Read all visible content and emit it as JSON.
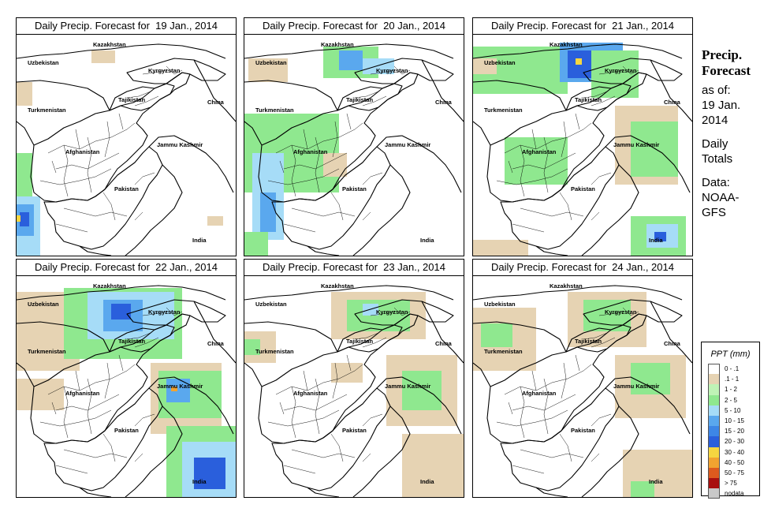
{
  "panels": [
    {
      "title": "Daily Precip. Forecast for  19 Jan., 2014",
      "precip": [
        {
          "x": 0,
          "y": 150,
          "w": 20,
          "h": 130,
          "c": "#8fe88f"
        },
        {
          "x": 0,
          "y": 205,
          "w": 30,
          "h": 75,
          "c": "#a6dcf7"
        },
        {
          "x": 0,
          "y": 215,
          "w": 22,
          "h": 40,
          "c": "#5aa8ee"
        },
        {
          "x": 4,
          "y": 225,
          "w": 12,
          "h": 18,
          "c": "#2a5fdc"
        },
        {
          "x": 0,
          "y": 229,
          "w": 5,
          "h": 8,
          "c": "#f6d640"
        },
        {
          "x": 95,
          "y": 20,
          "w": 30,
          "h": 16,
          "c": "#e6d3b3"
        },
        {
          "x": 0,
          "y": 60,
          "w": 20,
          "h": 30,
          "c": "#e6d3b3"
        },
        {
          "x": 242,
          "y": 230,
          "w": 20,
          "h": 12,
          "c": "#e6d3b3"
        }
      ]
    },
    {
      "title": "Daily Precip. Forecast for  20 Jan., 2014",
      "precip": [
        {
          "x": 5,
          "y": 30,
          "w": 50,
          "h": 30,
          "c": "#e6d3b3"
        },
        {
          "x": 0,
          "y": 100,
          "w": 120,
          "h": 100,
          "c": "#8fe88f"
        },
        {
          "x": 10,
          "y": 150,
          "w": 40,
          "h": 110,
          "c": "#a6dcf7"
        },
        {
          "x": 20,
          "y": 200,
          "w": 20,
          "h": 50,
          "c": "#5aa8ee"
        },
        {
          "x": 100,
          "y": 15,
          "w": 70,
          "h": 40,
          "c": "#8fe88f"
        },
        {
          "x": 120,
          "y": 20,
          "w": 30,
          "h": 25,
          "c": "#5aa8ee"
        },
        {
          "x": 150,
          "y": 30,
          "w": 40,
          "h": 20,
          "c": "#a6dcf7"
        },
        {
          "x": 100,
          "y": 150,
          "w": 30,
          "h": 30,
          "c": "#e6d3b3"
        },
        {
          "x": 0,
          "y": 250,
          "w": 30,
          "h": 30,
          "c": "#8fe88f"
        }
      ]
    },
    {
      "title": "Daily Precip. Forecast for  21 Jan., 2014",
      "precip": [
        {
          "x": 0,
          "y": 15,
          "w": 120,
          "h": 60,
          "c": "#8fe88f"
        },
        {
          "x": 0,
          "y": 30,
          "w": 30,
          "h": 20,
          "c": "#e6d3b3"
        },
        {
          "x": 110,
          "y": 10,
          "w": 80,
          "h": 50,
          "c": "#5aa8ee"
        },
        {
          "x": 120,
          "y": 20,
          "w": 30,
          "h": 35,
          "c": "#2a5fdc"
        },
        {
          "x": 130,
          "y": 30,
          "w": 8,
          "h": 8,
          "c": "#f6d640"
        },
        {
          "x": 150,
          "y": 20,
          "w": 60,
          "h": 60,
          "c": "#8fe88f"
        },
        {
          "x": 180,
          "y": 90,
          "w": 80,
          "h": 100,
          "c": "#e6d3b3"
        },
        {
          "x": 200,
          "y": 110,
          "w": 60,
          "h": 70,
          "c": "#8fe88f"
        },
        {
          "x": 40,
          "y": 130,
          "w": 80,
          "h": 60,
          "c": "#8fe88f"
        },
        {
          "x": 200,
          "y": 230,
          "w": 70,
          "h": 50,
          "c": "#8fe88f"
        },
        {
          "x": 220,
          "y": 240,
          "w": 40,
          "h": 30,
          "c": "#a6dcf7"
        },
        {
          "x": 230,
          "y": 250,
          "w": 15,
          "h": 12,
          "c": "#2a5fdc"
        },
        {
          "x": 0,
          "y": 260,
          "w": 70,
          "h": 20,
          "c": "#e6d3b3"
        }
      ]
    },
    {
      "title": "Daily Precip. Forecast for  22 Jan., 2014",
      "precip": [
        {
          "x": 0,
          "y": 20,
          "w": 80,
          "h": 100,
          "c": "#e6d3b3"
        },
        {
          "x": 60,
          "y": 15,
          "w": 150,
          "h": 90,
          "c": "#8fe88f"
        },
        {
          "x": 90,
          "y": 20,
          "w": 110,
          "h": 60,
          "c": "#a6dcf7"
        },
        {
          "x": 110,
          "y": 30,
          "w": 50,
          "h": 40,
          "c": "#5aa8ee"
        },
        {
          "x": 120,
          "y": 35,
          "w": 25,
          "h": 20,
          "c": "#2a5fdc"
        },
        {
          "x": 170,
          "y": 110,
          "w": 90,
          "h": 90,
          "c": "#e6d3b3"
        },
        {
          "x": 180,
          "y": 120,
          "w": 80,
          "h": 60,
          "c": "#8fe88f"
        },
        {
          "x": 190,
          "y": 130,
          "w": 30,
          "h": 30,
          "c": "#5aa8ee"
        },
        {
          "x": 196,
          "y": 140,
          "w": 8,
          "h": 6,
          "c": "#f2a330"
        },
        {
          "x": 190,
          "y": 190,
          "w": 88,
          "h": 90,
          "c": "#8fe88f"
        },
        {
          "x": 210,
          "y": 210,
          "w": 68,
          "h": 70,
          "c": "#a6dcf7"
        },
        {
          "x": 225,
          "y": 230,
          "w": 40,
          "h": 40,
          "c": "#2a5fdc"
        },
        {
          "x": 0,
          "y": 130,
          "w": 60,
          "h": 40,
          "c": "#e6d3b3"
        }
      ]
    },
    {
      "title": "Daily Precip. Forecast for  23 Jan., 2014",
      "precip": [
        {
          "x": 110,
          "y": 20,
          "w": 120,
          "h": 60,
          "c": "#e6d3b3"
        },
        {
          "x": 130,
          "y": 30,
          "w": 80,
          "h": 40,
          "c": "#8fe88f"
        },
        {
          "x": 150,
          "y": 35,
          "w": 20,
          "h": 15,
          "c": "#a6dcf7"
        },
        {
          "x": 180,
          "y": 100,
          "w": 90,
          "h": 90,
          "c": "#e6d3b3"
        },
        {
          "x": 200,
          "y": 120,
          "w": 50,
          "h": 50,
          "c": "#8fe88f"
        },
        {
          "x": 200,
          "y": 200,
          "w": 78,
          "h": 80,
          "c": "#e6d3b3"
        },
        {
          "x": 0,
          "y": 70,
          "w": 40,
          "h": 40,
          "c": "#e6d3b3"
        },
        {
          "x": 0,
          "y": 80,
          "w": 20,
          "h": 20,
          "c": "#8fe88f"
        },
        {
          "x": 110,
          "y": 110,
          "w": 40,
          "h": 25,
          "c": "#e6d3b3"
        }
      ]
    },
    {
      "title": "Daily Precip. Forecast for  24 Jan., 2014",
      "precip": [
        {
          "x": 0,
          "y": 40,
          "w": 80,
          "h": 80,
          "c": "#e6d3b3"
        },
        {
          "x": 10,
          "y": 60,
          "w": 40,
          "h": 30,
          "c": "#8fe88f"
        },
        {
          "x": 120,
          "y": 20,
          "w": 100,
          "h": 70,
          "c": "#e6d3b3"
        },
        {
          "x": 140,
          "y": 30,
          "w": 60,
          "h": 40,
          "c": "#8fe88f"
        },
        {
          "x": 180,
          "y": 100,
          "w": 90,
          "h": 80,
          "c": "#e6d3b3"
        },
        {
          "x": 200,
          "y": 110,
          "w": 50,
          "h": 40,
          "c": "#8fe88f"
        },
        {
          "x": 190,
          "y": 220,
          "w": 88,
          "h": 60,
          "c": "#e6d3b3"
        },
        {
          "x": 200,
          "y": 260,
          "w": 30,
          "h": 20,
          "c": "#8fe88f"
        }
      ]
    }
  ],
  "map_labels": {
    "kazakhstan": "Kazakhstan",
    "uzbekistan": "Uzbekistan",
    "kyrgyzstan": "Kyrgyzstan",
    "tajikistan": "Tajikistan",
    "turkmenistan": "Turkmenistan",
    "china": "China",
    "afghanistan": "Afghanistan",
    "jammu_kashmir": "Jammu Kashmir",
    "pakistan": "Pakistan",
    "india": "India"
  },
  "side_panel": {
    "heading_line1": "Precip.",
    "heading_line2": "Forecast",
    "asof_line1": "as of:",
    "asof_line2": "19 Jan.",
    "asof_line3": "2014",
    "daily_line1": "Daily",
    "daily_line2": "Totals",
    "data_line1": "Data:",
    "data_line2": "NOAA-",
    "data_line3": "GFS"
  },
  "legend": {
    "title": "PPT (mm)",
    "items": [
      {
        "label": "0 - .1",
        "color": "#ffffff"
      },
      {
        "label": ".1 - 1",
        "color": "#e6d3b3"
      },
      {
        "label": "1 - 2",
        "color": "#bff3b6"
      },
      {
        "label": "2 - 5",
        "color": "#8fe88f"
      },
      {
        "label": "5 - 10",
        "color": "#a6dcf7"
      },
      {
        "label": "10 - 15",
        "color": "#5aa8ee"
      },
      {
        "label": "15 - 20",
        "color": "#3d86e6"
      },
      {
        "label": "20 - 30",
        "color": "#2a5fdc"
      },
      {
        "label": "30 - 40",
        "color": "#f6d640"
      },
      {
        "label": "40 - 50",
        "color": "#f2a330"
      },
      {
        "label": "50 - 75",
        "color": "#dd5a1e"
      },
      {
        "label": "> 75",
        "color": "#a80f0f"
      },
      {
        "label": "nodata",
        "color": "#c8c8c8"
      }
    ]
  }
}
